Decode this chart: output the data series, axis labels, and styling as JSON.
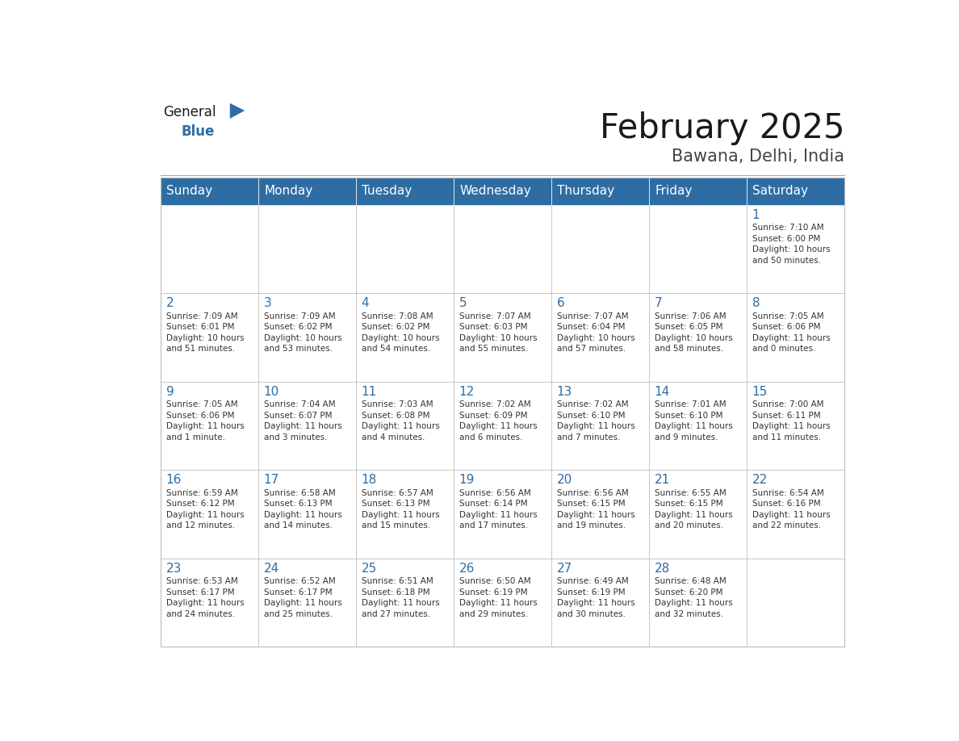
{
  "title": "February 2025",
  "subtitle": "Bawana, Delhi, India",
  "days_of_week": [
    "Sunday",
    "Monday",
    "Tuesday",
    "Wednesday",
    "Thursday",
    "Friday",
    "Saturday"
  ],
  "header_bg": "#2E6DA4",
  "header_text": "#FFFFFF",
  "cell_bg": "#FFFFFF",
  "cell_border": "#BBBBBB",
  "day_num_color": "#2E6DA4",
  "cell_text_color": "#333333",
  "title_color": "#1a1a1a",
  "subtitle_color": "#444444",
  "logo_general_color": "#1a1a1a",
  "logo_blue_color": "#2E6DA4",
  "weeks": [
    [
      {
        "day": null,
        "info": null
      },
      {
        "day": null,
        "info": null
      },
      {
        "day": null,
        "info": null
      },
      {
        "day": null,
        "info": null
      },
      {
        "day": null,
        "info": null
      },
      {
        "day": null,
        "info": null
      },
      {
        "day": 1,
        "info": "Sunrise: 7:10 AM\nSunset: 6:00 PM\nDaylight: 10 hours\nand 50 minutes."
      }
    ],
    [
      {
        "day": 2,
        "info": "Sunrise: 7:09 AM\nSunset: 6:01 PM\nDaylight: 10 hours\nand 51 minutes."
      },
      {
        "day": 3,
        "info": "Sunrise: 7:09 AM\nSunset: 6:02 PM\nDaylight: 10 hours\nand 53 minutes."
      },
      {
        "day": 4,
        "info": "Sunrise: 7:08 AM\nSunset: 6:02 PM\nDaylight: 10 hours\nand 54 minutes."
      },
      {
        "day": 5,
        "info": "Sunrise: 7:07 AM\nSunset: 6:03 PM\nDaylight: 10 hours\nand 55 minutes."
      },
      {
        "day": 6,
        "info": "Sunrise: 7:07 AM\nSunset: 6:04 PM\nDaylight: 10 hours\nand 57 minutes."
      },
      {
        "day": 7,
        "info": "Sunrise: 7:06 AM\nSunset: 6:05 PM\nDaylight: 10 hours\nand 58 minutes."
      },
      {
        "day": 8,
        "info": "Sunrise: 7:05 AM\nSunset: 6:06 PM\nDaylight: 11 hours\nand 0 minutes."
      }
    ],
    [
      {
        "day": 9,
        "info": "Sunrise: 7:05 AM\nSunset: 6:06 PM\nDaylight: 11 hours\nand 1 minute."
      },
      {
        "day": 10,
        "info": "Sunrise: 7:04 AM\nSunset: 6:07 PM\nDaylight: 11 hours\nand 3 minutes."
      },
      {
        "day": 11,
        "info": "Sunrise: 7:03 AM\nSunset: 6:08 PM\nDaylight: 11 hours\nand 4 minutes."
      },
      {
        "day": 12,
        "info": "Sunrise: 7:02 AM\nSunset: 6:09 PM\nDaylight: 11 hours\nand 6 minutes."
      },
      {
        "day": 13,
        "info": "Sunrise: 7:02 AM\nSunset: 6:10 PM\nDaylight: 11 hours\nand 7 minutes."
      },
      {
        "day": 14,
        "info": "Sunrise: 7:01 AM\nSunset: 6:10 PM\nDaylight: 11 hours\nand 9 minutes."
      },
      {
        "day": 15,
        "info": "Sunrise: 7:00 AM\nSunset: 6:11 PM\nDaylight: 11 hours\nand 11 minutes."
      }
    ],
    [
      {
        "day": 16,
        "info": "Sunrise: 6:59 AM\nSunset: 6:12 PM\nDaylight: 11 hours\nand 12 minutes."
      },
      {
        "day": 17,
        "info": "Sunrise: 6:58 AM\nSunset: 6:13 PM\nDaylight: 11 hours\nand 14 minutes."
      },
      {
        "day": 18,
        "info": "Sunrise: 6:57 AM\nSunset: 6:13 PM\nDaylight: 11 hours\nand 15 minutes."
      },
      {
        "day": 19,
        "info": "Sunrise: 6:56 AM\nSunset: 6:14 PM\nDaylight: 11 hours\nand 17 minutes."
      },
      {
        "day": 20,
        "info": "Sunrise: 6:56 AM\nSunset: 6:15 PM\nDaylight: 11 hours\nand 19 minutes."
      },
      {
        "day": 21,
        "info": "Sunrise: 6:55 AM\nSunset: 6:15 PM\nDaylight: 11 hours\nand 20 minutes."
      },
      {
        "day": 22,
        "info": "Sunrise: 6:54 AM\nSunset: 6:16 PM\nDaylight: 11 hours\nand 22 minutes."
      }
    ],
    [
      {
        "day": 23,
        "info": "Sunrise: 6:53 AM\nSunset: 6:17 PM\nDaylight: 11 hours\nand 24 minutes."
      },
      {
        "day": 24,
        "info": "Sunrise: 6:52 AM\nSunset: 6:17 PM\nDaylight: 11 hours\nand 25 minutes."
      },
      {
        "day": 25,
        "info": "Sunrise: 6:51 AM\nSunset: 6:18 PM\nDaylight: 11 hours\nand 27 minutes."
      },
      {
        "day": 26,
        "info": "Sunrise: 6:50 AM\nSunset: 6:19 PM\nDaylight: 11 hours\nand 29 minutes."
      },
      {
        "day": 27,
        "info": "Sunrise: 6:49 AM\nSunset: 6:19 PM\nDaylight: 11 hours\nand 30 minutes."
      },
      {
        "day": 28,
        "info": "Sunrise: 6:48 AM\nSunset: 6:20 PM\nDaylight: 11 hours\nand 32 minutes."
      },
      {
        "day": null,
        "info": null
      }
    ]
  ]
}
